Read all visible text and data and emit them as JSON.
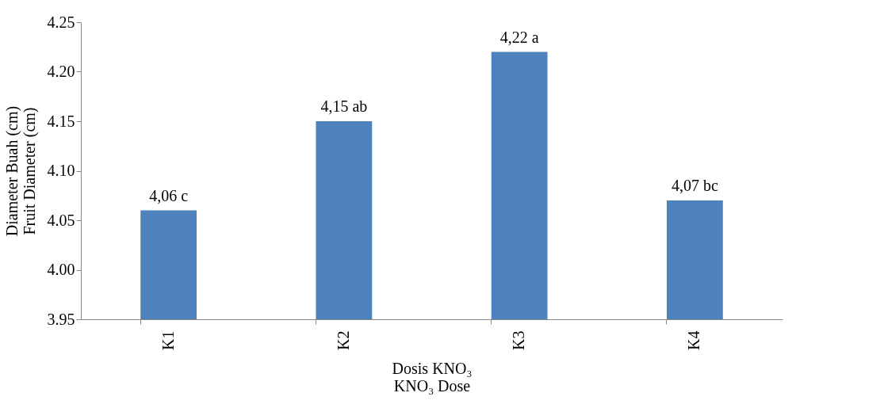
{
  "chart_data": {
    "type": "bar",
    "xlabel": "Dosis KNO₃\nKNO₃ Dose",
    "ylabel": "Diameter Buah (cm)\nFruit Diameter (cm)",
    "categories": [
      "K1",
      "K2",
      "K3",
      "K4"
    ],
    "values": [
      4.06,
      4.15,
      4.22,
      4.07
    ],
    "value_labels": [
      "4,06 c",
      "4,15 ab",
      "4,22 a",
      "4,07 bc"
    ],
    "color": "#4f81bd",
    "ylim": [
      3.95,
      4.25
    ],
    "yticks": [
      {
        "value": 3.95,
        "label": "3.95"
      },
      {
        "value": 4.0,
        "label": "4.00"
      },
      {
        "value": 4.05,
        "label": "4.05"
      },
      {
        "value": 4.1,
        "label": "4.10"
      },
      {
        "value": 4.15,
        "label": "4.15"
      },
      {
        "value": 4.2,
        "label": "4.20"
      },
      {
        "value": 4.25,
        "label": "4.25"
      }
    ],
    "grid": false
  }
}
